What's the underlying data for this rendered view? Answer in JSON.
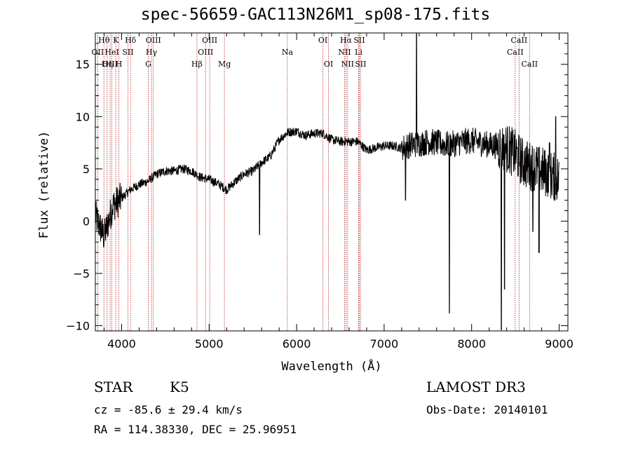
{
  "title": "spec-56659-GAC113N26M1_sp08-175.fits",
  "info": {
    "class": "STAR",
    "subclass": "K5",
    "survey": "LAMOST DR3",
    "cz": "cz = -85.6 ± 29.4 km/s",
    "obs_date": "Obs-Date: 20140101",
    "coords": "RA = 114.38330, DEC =  25.96951"
  },
  "colors": {
    "line_marker": "#b22222",
    "spectrum": "#000000"
  },
  "chart_data": {
    "type": "line",
    "title": "spec-56659-GAC113N26M1_sp08-175.fits",
    "xlabel": "Wavelength (Å)",
    "ylabel": "Flux (relative)",
    "xlim": [
      3700,
      9100
    ],
    "ylim": [
      -10.5,
      18
    ],
    "xticks": [
      4000,
      5000,
      6000,
      7000,
      8000,
      9000
    ],
    "yticks": [
      -10,
      -5,
      0,
      5,
      10,
      15
    ],
    "spectrum_trend": {
      "x": [
        3700,
        3800,
        3900,
        4000,
        4100,
        4200,
        4300,
        4400,
        4500,
        4600,
        4700,
        4800,
        4900,
        5000,
        5100,
        5200,
        5300,
        5400,
        5500,
        5600,
        5700,
        5800,
        5900,
        6000,
        6100,
        6200,
        6300,
        6400,
        6500,
        6600,
        6700,
        6800,
        6900,
        7000,
        7100,
        7200,
        7300,
        7400,
        7500,
        7600,
        7700,
        7800,
        7900,
        8000,
        8100,
        8200,
        8300,
        8400,
        8500,
        8600,
        8700,
        8800,
        8900,
        9000
      ],
      "y": [
        0.5,
        -1.5,
        1.5,
        2.2,
        3.0,
        3.5,
        3.8,
        4.5,
        4.8,
        4.8,
        5.0,
        4.8,
        4.2,
        4.0,
        3.6,
        3.0,
        3.8,
        4.5,
        4.8,
        5.6,
        6.2,
        7.8,
        8.5,
        8.6,
        8.2,
        8.4,
        8.4,
        7.8,
        7.6,
        7.6,
        7.6,
        6.8,
        7.0,
        7.2,
        7.2,
        7.0,
        7.3,
        7.4,
        7.6,
        7.5,
        7.3,
        7.4,
        7.6,
        7.7,
        7.5,
        7.3,
        7.2,
        7.0,
        6.4,
        5.5,
        5.2,
        4.8,
        4.4,
        4.0
      ]
    },
    "spikes": [
      {
        "x": 5577,
        "y": -1.3
      },
      {
        "x": 7245,
        "y": 2.0
      },
      {
        "x": 7370,
        "y": 18
      },
      {
        "x": 7745,
        "y": -8.8
      },
      {
        "x": 8340,
        "y": -10.4
      },
      {
        "x": 8375,
        "y": -6.5
      },
      {
        "x": 8700,
        "y": -1.0
      },
      {
        "x": 8770,
        "y": -3.0
      },
      {
        "x": 8890,
        "y": 7.5
      },
      {
        "x": 8960,
        "y": 10.0
      }
    ],
    "lines": [
      {
        "label": "OII",
        "x": 3727,
        "row": 1
      },
      {
        "label": "Hθ",
        "x": 3798,
        "row": 0
      },
      {
        "label": "OIII",
        "x": 3869,
        "row": 2
      },
      {
        "label": "Hη",
        "x": 3835,
        "row": 2
      },
      {
        "label": "HeI",
        "x": 3889,
        "row": 1
      },
      {
        "label": "K",
        "x": 3934,
        "row": 0
      },
      {
        "label": "H",
        "x": 3969,
        "row": 2
      },
      {
        "label": "SII",
        "x": 4072,
        "row": 1
      },
      {
        "label": "Hδ",
        "x": 4102,
        "row": 0
      },
      {
        "label": "G",
        "x": 4305,
        "row": 2
      },
      {
        "label": "Hγ",
        "x": 4341,
        "row": 1
      },
      {
        "label": "OIII",
        "x": 4363,
        "row": 0
      },
      {
        "label": "Hβ",
        "x": 4861,
        "row": 2
      },
      {
        "label": "OIII",
        "x": 4959,
        "row": 1
      },
      {
        "label": "OIII",
        "x": 5007,
        "row": 0
      },
      {
        "label": "Mg",
        "x": 5175,
        "row": 2
      },
      {
        "label": "Na",
        "x": 5894,
        "row": 1
      },
      {
        "label": "OI",
        "x": 6300,
        "row": 0
      },
      {
        "label": "OI",
        "x": 6364,
        "row": 2
      },
      {
        "label": "NII",
        "x": 6548,
        "row": 1
      },
      {
        "label": "Hα",
        "x": 6563,
        "row": 0
      },
      {
        "label": "NII",
        "x": 6583,
        "row": 2
      },
      {
        "label": "Li",
        "x": 6708,
        "row": 1
      },
      {
        "label": "SII",
        "x": 6716,
        "row": 0
      },
      {
        "label": "SII",
        "x": 6731,
        "row": 2
      },
      {
        "label": "CaII",
        "x": 8498,
        "row": 1
      },
      {
        "label": "CaII",
        "x": 8542,
        "row": 0
      },
      {
        "label": "CaII",
        "x": 8662,
        "row": 2
      }
    ]
  }
}
